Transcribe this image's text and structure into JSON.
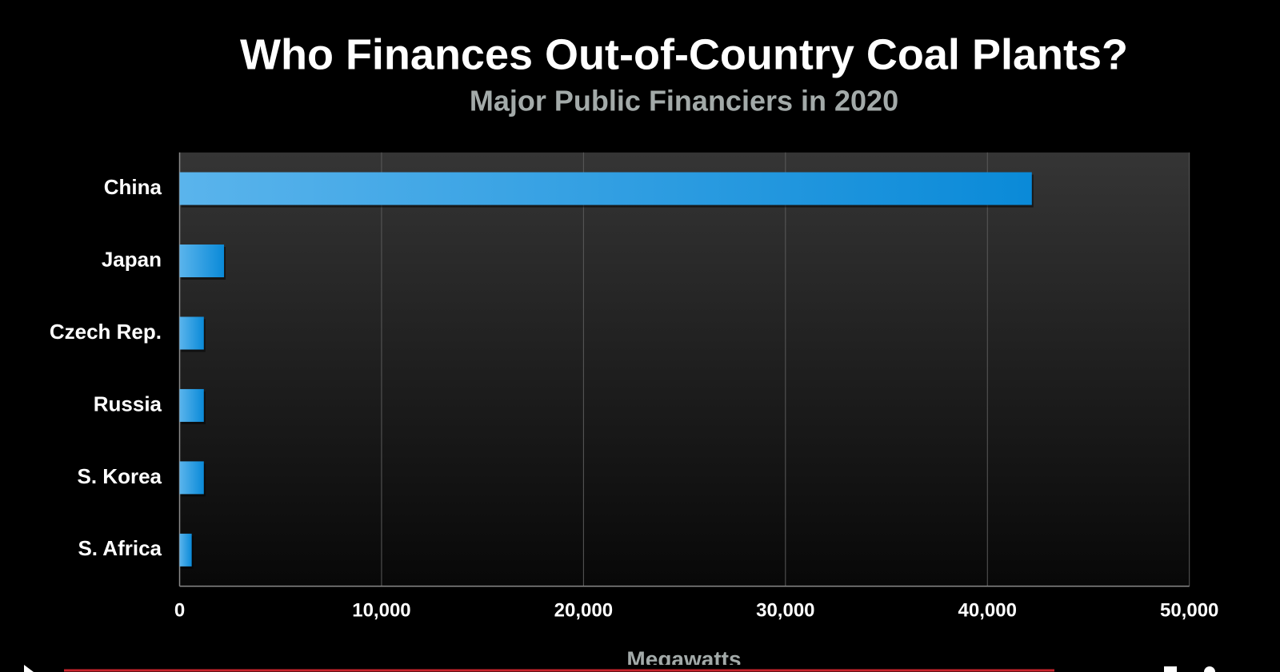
{
  "chart_data": {
    "type": "bar",
    "orientation": "horizontal",
    "title": "Who Finances Out-of-Country Coal Plants?",
    "subtitle": "Major Public Financiers in 2020",
    "x_label": "Megawatts",
    "categories": [
      "China",
      "Japan",
      "Czech Rep.",
      "Russia",
      "S. Korea",
      "S. Africa"
    ],
    "values": [
      42200,
      2200,
      1200,
      1200,
      1200,
      600
    ],
    "color": "#0a8ad8",
    "xlim": [
      0,
      50000
    ],
    "xticks": [
      0,
      {
        "value": 10000,
        "label": "10,000"
      },
      {
        "value": 20000,
        "label": "20,000"
      },
      {
        "value": 30000,
        "label": "30,000"
      },
      {
        "value": 40000,
        "label": "40,000"
      },
      {
        "value": 50000,
        "label": "50,000"
      }
    ],
    "grid": true
  }
}
